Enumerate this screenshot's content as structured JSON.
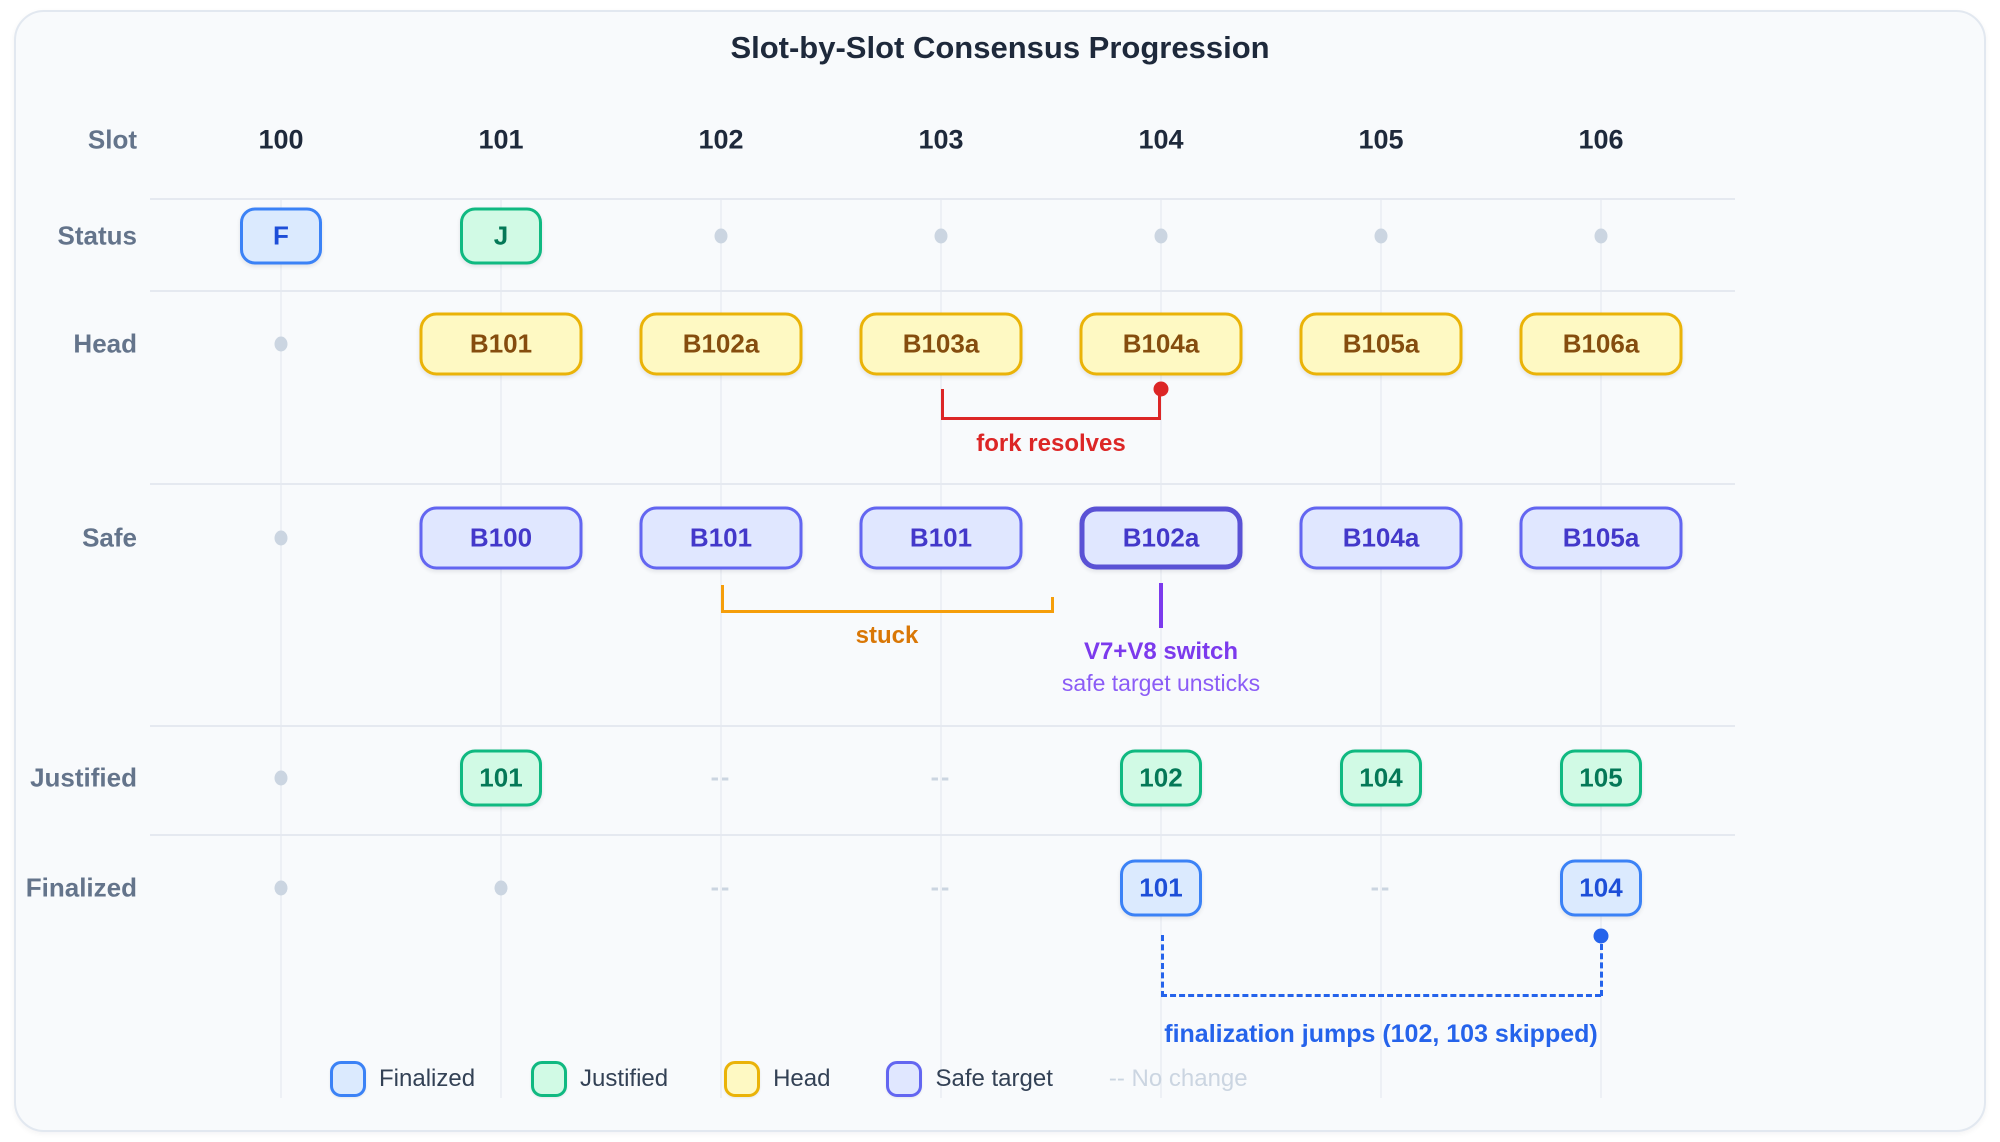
{
  "title": "Slot-by-Slot Consensus Progression",
  "header": {
    "label": "Slot",
    "slots": [
      "100",
      "101",
      "102",
      "103",
      "104",
      "105",
      "106"
    ]
  },
  "no_change_glyph": "--",
  "rows": [
    {
      "id": "status",
      "label": "Status",
      "cells": [
        {
          "type": "badge",
          "variant": "blue",
          "size": "small",
          "text": "F"
        },
        {
          "type": "badge",
          "variant": "green",
          "size": "small",
          "text": "J"
        },
        {
          "type": "dot"
        },
        {
          "type": "dot"
        },
        {
          "type": "dot"
        },
        {
          "type": "dot"
        },
        {
          "type": "dot"
        }
      ]
    },
    {
      "id": "head",
      "label": "Head",
      "cells": [
        {
          "type": "dot"
        },
        {
          "type": "badge",
          "variant": "yellow",
          "size": "big",
          "text": "B101"
        },
        {
          "type": "badge",
          "variant": "yellow",
          "size": "big",
          "text": "B102a"
        },
        {
          "type": "badge",
          "variant": "yellow",
          "size": "big",
          "text": "B103a"
        },
        {
          "type": "badge",
          "variant": "yellow",
          "size": "big",
          "text": "B104a"
        },
        {
          "type": "badge",
          "variant": "yellow",
          "size": "big",
          "text": "B105a"
        },
        {
          "type": "badge",
          "variant": "yellow",
          "size": "big",
          "text": "B106a"
        }
      ]
    },
    {
      "id": "safe",
      "label": "Safe",
      "cells": [
        {
          "type": "dot"
        },
        {
          "type": "badge",
          "variant": "indigo",
          "size": "big",
          "text": "B100"
        },
        {
          "type": "badge",
          "variant": "indigo",
          "size": "big",
          "text": "B101"
        },
        {
          "type": "badge",
          "variant": "indigo",
          "size": "big",
          "text": "B101"
        },
        {
          "type": "badge",
          "variant": "indigo",
          "size": "big",
          "text": "B102a",
          "emphasis": true
        },
        {
          "type": "badge",
          "variant": "indigo",
          "size": "big",
          "text": "B104a"
        },
        {
          "type": "badge",
          "variant": "indigo",
          "size": "big",
          "text": "B105a"
        }
      ]
    },
    {
      "id": "justified",
      "label": "Justified",
      "cells": [
        {
          "type": "dot"
        },
        {
          "type": "badge",
          "variant": "green",
          "size": "small",
          "text": "101"
        },
        {
          "type": "dash"
        },
        {
          "type": "dash"
        },
        {
          "type": "badge",
          "variant": "green",
          "size": "small",
          "text": "102"
        },
        {
          "type": "badge",
          "variant": "green",
          "size": "small",
          "text": "104"
        },
        {
          "type": "badge",
          "variant": "green",
          "size": "small",
          "text": "105"
        }
      ]
    },
    {
      "id": "finalized",
      "label": "Finalized",
      "cells": [
        {
          "type": "dot"
        },
        {
          "type": "dot"
        },
        {
          "type": "dash"
        },
        {
          "type": "dash"
        },
        {
          "type": "badge",
          "variant": "blue",
          "size": "small",
          "text": "101"
        },
        {
          "type": "dash"
        },
        {
          "type": "badge",
          "variant": "blue",
          "size": "small",
          "text": "104"
        }
      ]
    }
  ],
  "annotations": {
    "fork": {
      "label": "fork resolves",
      "color": "#dc2626"
    },
    "stuck": {
      "label": "stuck",
      "color": "#f59e0b",
      "text_color": "#d97706"
    },
    "switch": {
      "title": "V7+V8 switch",
      "subtitle": "safe target unsticks",
      "color": "#7c3aed",
      "subtitle_color": "#8b5cf6"
    },
    "finalization": {
      "label": "finalization jumps (102, 103 skipped)",
      "color": "#2563eb"
    }
  },
  "legend": {
    "items": [
      {
        "variant": "blue",
        "label": "Finalized"
      },
      {
        "variant": "green",
        "label": "Justified"
      },
      {
        "variant": "yellow",
        "label": "Head"
      },
      {
        "variant": "indigo",
        "label": "Safe target"
      },
      {
        "variant": "none",
        "label": "-- No change"
      }
    ]
  },
  "palette": {
    "card_bg": "#f8fafc",
    "finalized_fill": "#dbeafe",
    "finalized_border": "#3b82f6",
    "finalized_text": "#1d4ed8",
    "justified_fill": "#d1fae5",
    "justified_border": "#10b981",
    "justified_text": "#047857",
    "head_fill": "#fef9c3",
    "head_border": "#eab308",
    "head_text": "#854d0e",
    "safe_fill": "#e0e7ff",
    "safe_border": "#6366f1",
    "safe_text": "#4338ca",
    "muted": "#cbd5e1"
  }
}
